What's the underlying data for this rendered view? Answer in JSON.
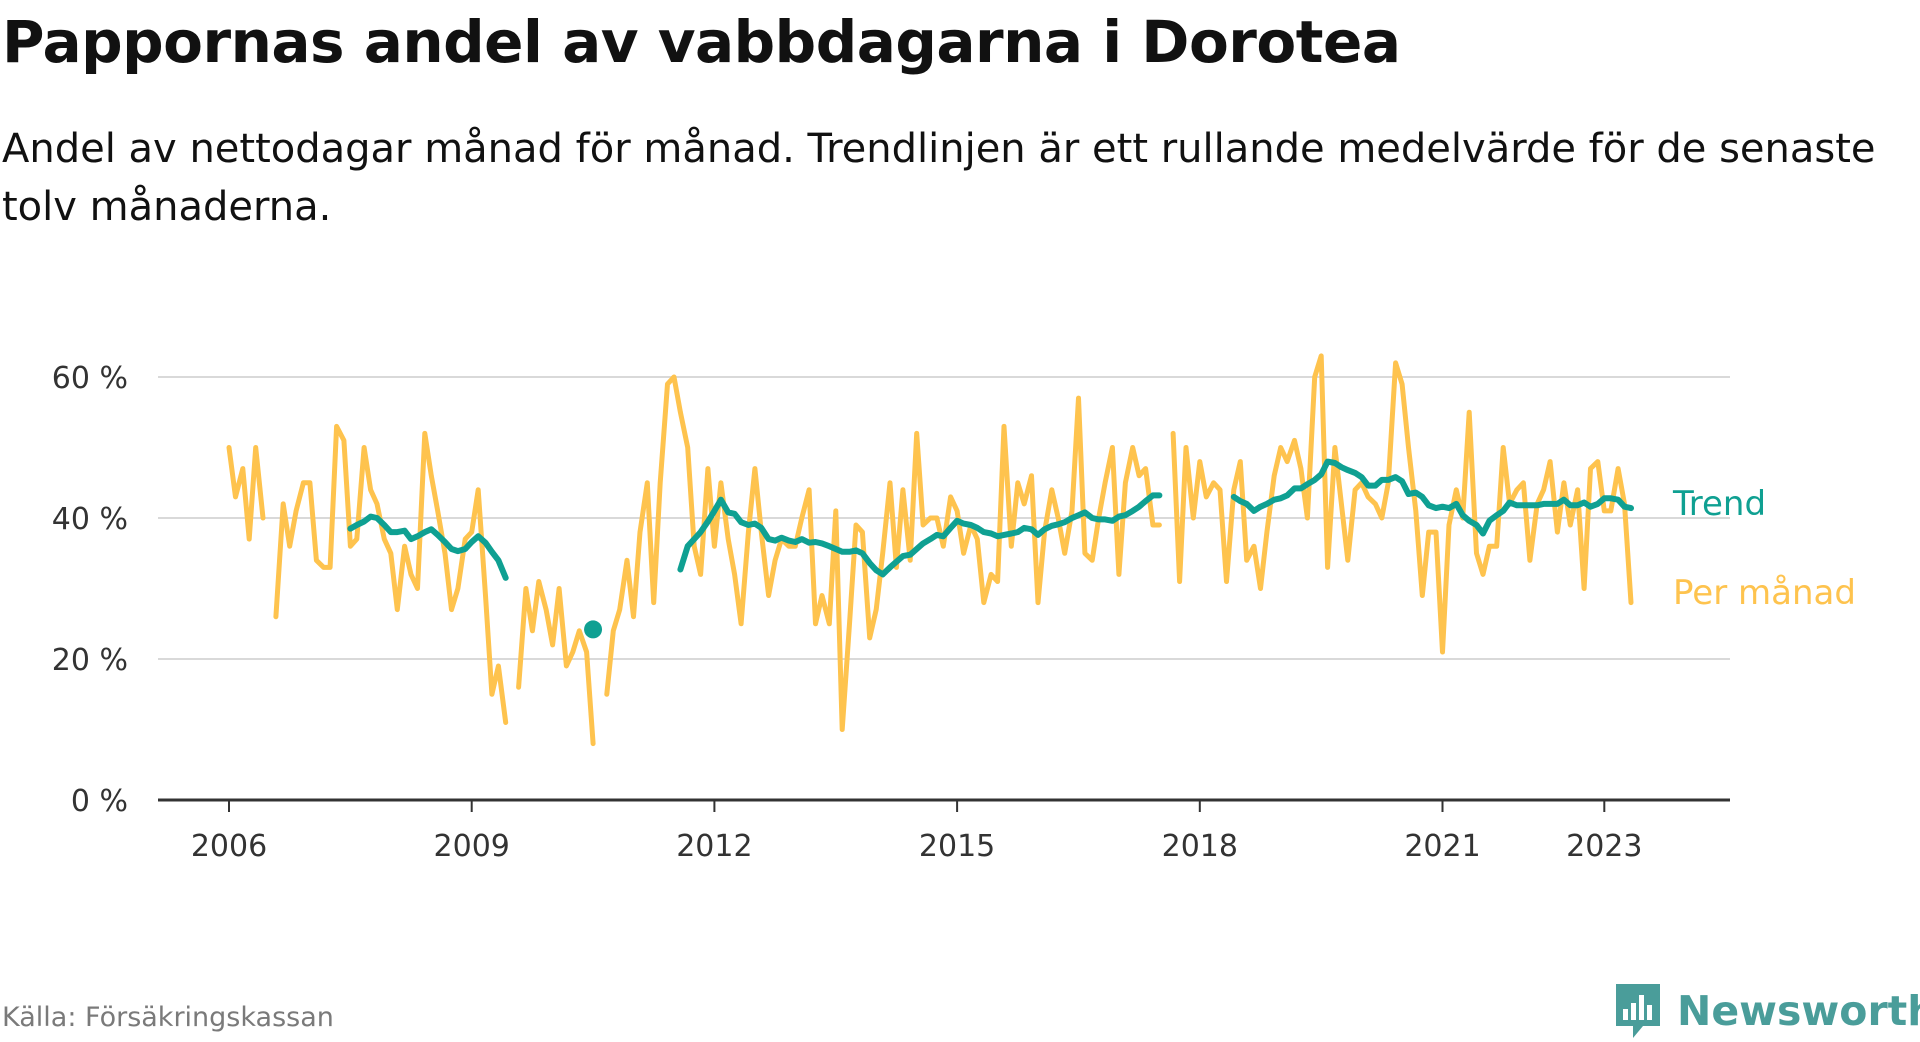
{
  "title": "Pappornas andel av vabbdagarna i Dorotea",
  "subtitle": "Andel av nettodagar månad för månad. Trendlinjen är ett rullande medelvärde för de senaste tolv månaderna.",
  "source": "Källa: Försäkringskassan",
  "brand": {
    "name": "Newsworthy",
    "icon": "newsworthy-logo-icon"
  },
  "colors": {
    "monthly": "#FEC34E",
    "trend": "#0FA092",
    "grid": "#d9d9d9",
    "axis": "#333333"
  },
  "chart_data": {
    "type": "line",
    "ylim": [
      0,
      60
    ],
    "y_ticks": [
      {
        "value": 0,
        "label": "0 %"
      },
      {
        "value": 20,
        "label": "20 %"
      },
      {
        "value": 40,
        "label": "40 %"
      },
      {
        "value": 60,
        "label": "60 %"
      }
    ],
    "x_ticks": [
      {
        "value": 2006,
        "label": "2006"
      },
      {
        "value": 2009,
        "label": "2009"
      },
      {
        "value": 2012,
        "label": "2012"
      },
      {
        "value": 2015,
        "label": "2015"
      },
      {
        "value": 2018,
        "label": "2018"
      },
      {
        "value": 2021,
        "label": "2021"
      },
      {
        "value": 2023,
        "label": "2023"
      }
    ],
    "series": [
      {
        "name": "Per månad",
        "color": "#FEC34E",
        "segments": [
          {
            "x": [
              2006.0,
              2006.08,
              2006.17,
              2006.25,
              2006.33,
              2006.42
            ],
            "y": [
              50,
              43,
              47,
              37,
              50,
              40
            ]
          },
          {
            "x": [
              2006.58,
              2006.67,
              2006.75,
              2006.83,
              2006.92,
              2007.0,
              2007.08,
              2007.17,
              2007.25,
              2007.33,
              2007.42,
              2007.5,
              2007.58,
              2007.67,
              2007.75,
              2007.83,
              2007.92,
              2008.0,
              2008.08,
              2008.17,
              2008.25,
              2008.33,
              2008.42,
              2008.5,
              2008.58,
              2008.67,
              2008.75,
              2008.83,
              2008.92,
              2009.0,
              2009.08,
              2009.17,
              2009.25,
              2009.33,
              2009.42
            ],
            "y": [
              26,
              42,
              36,
              41,
              45,
              45,
              34,
              33,
              33,
              53,
              51,
              36,
              37,
              50,
              44,
              42,
              37,
              35,
              27,
              36,
              32,
              30,
              52,
              46,
              41,
              35,
              27,
              30,
              37,
              38,
              44,
              29,
              15,
              19,
              11
            ]
          },
          {
            "x": [
              2009.58,
              2009.67,
              2009.75,
              2009.83,
              2009.92,
              2010.0,
              2010.08,
              2010.17,
              2010.25,
              2010.33,
              2010.42,
              2010.5
            ],
            "y": [
              16,
              30,
              24,
              31,
              27,
              22,
              30,
              19,
              21,
              24,
              21,
              8
            ]
          },
          {
            "x": [
              2010.67,
              2010.75,
              2010.83,
              2010.92,
              2011.0,
              2011.08,
              2011.17,
              2011.25,
              2011.33,
              2011.42,
              2011.5,
              2011.58,
              2011.67,
              2011.75,
              2011.83,
              2011.92,
              2012.0,
              2012.08,
              2012.17,
              2012.25,
              2012.33,
              2012.42,
              2012.5,
              2012.58,
              2012.67,
              2012.75,
              2012.83,
              2012.92,
              2013.0,
              2013.08,
              2013.17,
              2013.25,
              2013.33,
              2013.42,
              2013.5,
              2013.58,
              2013.67,
              2013.75,
              2013.83,
              2013.92,
              2014.0,
              2014.08,
              2014.17,
              2014.25,
              2014.33,
              2014.42,
              2014.5,
              2014.58,
              2014.67,
              2014.75,
              2014.83,
              2014.92,
              2015.0,
              2015.08,
              2015.17,
              2015.25,
              2015.33,
              2015.42,
              2015.5,
              2015.58,
              2015.67,
              2015.75,
              2015.83,
              2015.92,
              2016.0,
              2016.08,
              2016.17,
              2016.25,
              2016.33,
              2016.42,
              2016.5,
              2016.58,
              2016.67,
              2016.75,
              2016.83,
              2016.92,
              2017.0,
              2017.08,
              2017.17,
              2017.25,
              2017.33,
              2017.42,
              2017.5
            ],
            "y": [
              15,
              24,
              27,
              34,
              26,
              38,
              45,
              28,
              45,
              59,
              60,
              55,
              50,
              36,
              32,
              47,
              36,
              45,
              37,
              32,
              25,
              38,
              47,
              38,
              29,
              34,
              37,
              36,
              36,
              40,
              44,
              25,
              29,
              25,
              41,
              10,
              25,
              39,
              38,
              23,
              27,
              35,
              45,
              33,
              44,
              34,
              52,
              39,
              40,
              40,
              36,
              43,
              41,
              35,
              39,
              37,
              28,
              32,
              31,
              53,
              36,
              45,
              42,
              46,
              28,
              38,
              44,
              40,
              35,
              41,
              57,
              35,
              34,
              40,
              45,
              50,
              32,
              45,
              50,
              46,
              47,
              39,
              39
            ]
          },
          {
            "x": [
              2017.67,
              2017.75,
              2017.83,
              2017.92,
              2018.0,
              2018.08,
              2018.17,
              2018.25,
              2018.33,
              2018.42,
              2018.5,
              2018.58,
              2018.67,
              2018.75,
              2018.83,
              2018.92,
              2019.0,
              2019.08,
              2019.17,
              2019.25,
              2019.33,
              2019.42,
              2019.5,
              2019.58,
              2019.67,
              2019.75,
              2019.83,
              2019.92,
              2020.0,
              2020.08,
              2020.17,
              2020.25,
              2020.33,
              2020.42,
              2020.5,
              2020.58,
              2020.67,
              2020.75,
              2020.83,
              2020.92,
              2021.0,
              2021.08,
              2021.17,
              2021.25,
              2021.33,
              2021.42,
              2021.5,
              2021.58,
              2021.67,
              2021.75,
              2021.83,
              2021.92,
              2022.0,
              2022.08,
              2022.17,
              2022.25,
              2022.33,
              2022.42,
              2022.5,
              2022.58,
              2022.67,
              2022.75,
              2022.83,
              2022.92,
              2023.0,
              2023.08,
              2023.17,
              2023.25,
              2023.33
            ],
            "y": [
              52,
              31,
              50,
              40,
              48,
              43,
              45,
              44,
              31,
              44,
              48,
              34,
              36,
              30,
              38,
              46,
              50,
              48,
              51,
              47,
              40,
              60,
              63,
              33,
              50,
              42,
              34,
              44,
              45,
              43,
              42,
              40,
              45,
              62,
              59,
              50,
              41,
              29,
              38,
              38,
              21,
              39,
              44,
              40,
              55,
              35,
              32,
              36,
              36,
              50,
              42,
              44,
              45,
              34,
              42,
              44,
              48,
              38,
              45,
              39,
              44,
              30,
              47,
              48,
              41,
              41,
              47,
              42,
              28
            ]
          }
        ]
      },
      {
        "name": "Trend",
        "color": "#0FA092",
        "segments": [
          {
            "x": [
              2007.5,
              2007.58,
              2007.67,
              2007.75,
              2007.83,
              2007.92,
              2008.0,
              2008.08,
              2008.17,
              2008.25,
              2008.33,
              2008.42,
              2008.5,
              2008.58,
              2008.67,
              2008.75,
              2008.83,
              2008.92,
              2009.0,
              2009.08,
              2009.17,
              2009.25,
              2009.33,
              2009.42
            ],
            "y": [
              38.5,
              39,
              39.5,
              40.2,
              40,
              39,
              38,
              38,
              38.2,
              37,
              37.4,
              38,
              38.4,
              37.6,
              36.6,
              35.6,
              35.3,
              35.6,
              36.6,
              37.4,
              36.5,
              35.2,
              34,
              31.5
            ]
          },
          {
            "x": [
              2010.5
            ],
            "y": [
              24.2
            ]
          },
          {
            "x": [
              2011.58,
              2011.67,
              2011.75,
              2011.83,
              2011.92,
              2012.0,
              2012.08,
              2012.17,
              2012.25,
              2012.33,
              2012.42,
              2012.5,
              2012.58,
              2012.67,
              2012.75,
              2012.83,
              2012.92,
              2013.0,
              2013.08,
              2013.17,
              2013.25,
              2013.33,
              2013.42,
              2013.5,
              2013.58,
              2013.67,
              2013.75,
              2013.83,
              2013.92,
              2014.0,
              2014.08,
              2014.17,
              2014.25,
              2014.33,
              2014.42,
              2014.5,
              2014.58,
              2014.67,
              2014.75,
              2014.83,
              2014.92,
              2015.0,
              2015.08,
              2015.17,
              2015.25,
              2015.33,
              2015.42,
              2015.5,
              2015.58,
              2015.67,
              2015.75,
              2015.83,
              2015.92,
              2016.0,
              2016.08,
              2016.17,
              2016.25,
              2016.33,
              2016.42,
              2016.5,
              2016.58,
              2016.67,
              2016.75,
              2016.83,
              2016.92,
              2017.0,
              2017.08,
              2017.17,
              2017.25,
              2017.33,
              2017.42,
              2017.5
            ],
            "y": [
              32.7,
              36,
              37,
              38,
              39.5,
              41,
              42.6,
              40.8,
              40.6,
              39.4,
              39,
              39.2,
              38.6,
              37,
              36.8,
              37.2,
              36.8,
              36.6,
              37,
              36.5,
              36.6,
              36.4,
              36,
              35.6,
              35.2,
              35.2,
              35.4,
              35,
              33.6,
              32.6,
              32,
              33,
              33.8,
              34.6,
              34.8,
              35.6,
              36.4,
              37,
              37.6,
              37.4,
              38.6,
              39.6,
              39.2,
              39,
              38.6,
              38,
              37.8,
              37.4,
              37.6,
              37.8,
              38,
              38.6,
              38.4,
              37.6,
              38.4,
              38.9,
              39.1,
              39.4,
              40,
              40.4,
              40.8,
              40,
              39.8,
              39.8,
              39.6,
              40.2,
              40.4,
              41,
              41.6,
              42.4,
              43.2,
              43.2
            ]
          },
          {
            "x": [
              2018.42,
              2018.5,
              2018.58,
              2018.67,
              2018.75,
              2018.83,
              2018.92,
              2019.0,
              2019.08,
              2019.17,
              2019.25,
              2019.33,
              2019.42,
              2019.5,
              2019.58,
              2019.67,
              2019.75,
              2019.83,
              2019.92,
              2020.0,
              2020.08,
              2020.17,
              2020.25,
              2020.33,
              2020.42,
              2020.5,
              2020.58,
              2020.67,
              2020.75,
              2020.83,
              2020.92,
              2021.0,
              2021.08,
              2021.17,
              2021.25,
              2021.33,
              2021.42,
              2021.5,
              2021.58,
              2021.67,
              2021.75,
              2021.83,
              2021.92,
              2022.0,
              2022.08,
              2022.17,
              2022.25,
              2022.33,
              2022.42,
              2022.5,
              2022.58,
              2022.67,
              2022.75,
              2022.83,
              2022.92,
              2023.0,
              2023.08,
              2023.17,
              2023.25,
              2023.33
            ],
            "y": [
              43,
              42.4,
              42,
              41,
              41.6,
              42,
              42.6,
              42.8,
              43.2,
              44.2,
              44.2,
              44.8,
              45.4,
              46.2,
              48,
              47.8,
              47.2,
              46.8,
              46.4,
              45.8,
              44.6,
              44.6,
              45.4,
              45.4,
              45.8,
              45.2,
              43.4,
              43.6,
              43,
              41.8,
              41.4,
              41.6,
              41.4,
              42,
              40.4,
              39.6,
              39,
              37.8,
              39.6,
              40.4,
              41,
              42.2,
              41.8,
              41.8,
              41.8,
              41.8,
              42,
              42,
              42,
              42.6,
              41.8,
              41.8,
              42.2,
              41.6,
              42,
              42.8,
              42.8,
              42.6,
              41.6,
              41.4
            ]
          }
        ]
      }
    ]
  }
}
